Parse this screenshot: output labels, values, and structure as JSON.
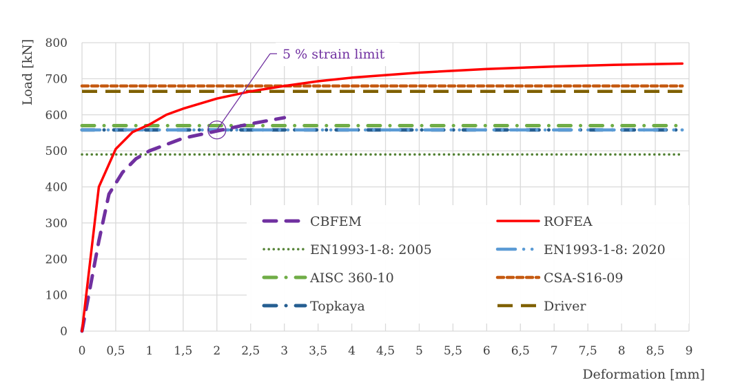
{
  "chart_data": {
    "type": "line",
    "title": "",
    "xlabel": "Deformation [mm]",
    "ylabel": "Load [kN]",
    "xlim": [
      0,
      9
    ],
    "ylim": [
      0,
      800
    ],
    "xticks": [
      "0",
      "0,5",
      "1",
      "1,5",
      "2",
      "2,5",
      "3",
      "3,5",
      "4",
      "4,5",
      "5",
      "5,5",
      "6",
      "6,5",
      "7",
      "7,5",
      "8",
      "8,5",
      "9"
    ],
    "yticks": [
      "0",
      "100",
      "200",
      "300",
      "400",
      "500",
      "600",
      "700",
      "800"
    ],
    "grid": true,
    "legend_position": "bottom-right inside",
    "series": [
      {
        "name": "CBFEM",
        "color": "#7030A0",
        "style": "dash",
        "x": [
          0,
          0.1,
          0.25,
          0.4,
          0.6,
          0.8,
          1,
          1.5,
          2,
          2.5,
          3
        ],
        "y": [
          0,
          100,
          250,
          380,
          440,
          478,
          500,
          535,
          555,
          575,
          592
        ]
      },
      {
        "name": "ROFEA",
        "color": "#FF0000",
        "style": "solid",
        "x": [
          0,
          0.25,
          0.5,
          0.75,
          1,
          1.25,
          1.5,
          2,
          2.5,
          3,
          3.5,
          4,
          5,
          6,
          7,
          8,
          8.9
        ],
        "y": [
          0,
          400,
          505,
          552,
          573,
          600,
          617,
          645,
          665,
          680,
          693,
          703,
          717,
          727,
          734,
          739,
          742
        ]
      },
      {
        "name": "EN1993-1-8: 2005",
        "color": "#548235",
        "style": "dot",
        "x": [
          0,
          8.9
        ],
        "y": [
          490,
          490
        ]
      },
      {
        "name": "EN1993-1-8: 2020",
        "color": "#5B9BD5",
        "style": "longdashdot",
        "x": [
          0,
          8.9
        ],
        "y": [
          558,
          558
        ]
      },
      {
        "name": "AISC 360-10",
        "color": "#70AD47",
        "style": "dashdot",
        "x": [
          0,
          8.9
        ],
        "y": [
          570,
          570
        ]
      },
      {
        "name": "CSA-S16-09",
        "color": "#C55A11",
        "style": "shortdash",
        "x": [
          0,
          8.9
        ],
        "y": [
          680,
          680
        ]
      },
      {
        "name": "Topkaya",
        "color": "#255E91",
        "style": "dashdot",
        "x": [
          0,
          8.9
        ],
        "y": [
          558,
          558
        ]
      },
      {
        "name": "Driver",
        "color": "#7F6000",
        "style": "longdash",
        "x": [
          0,
          8.9
        ],
        "y": [
          665,
          665
        ]
      }
    ],
    "annotation": {
      "text": "5 % strain limit",
      "x": 2,
      "y": 558
    }
  }
}
